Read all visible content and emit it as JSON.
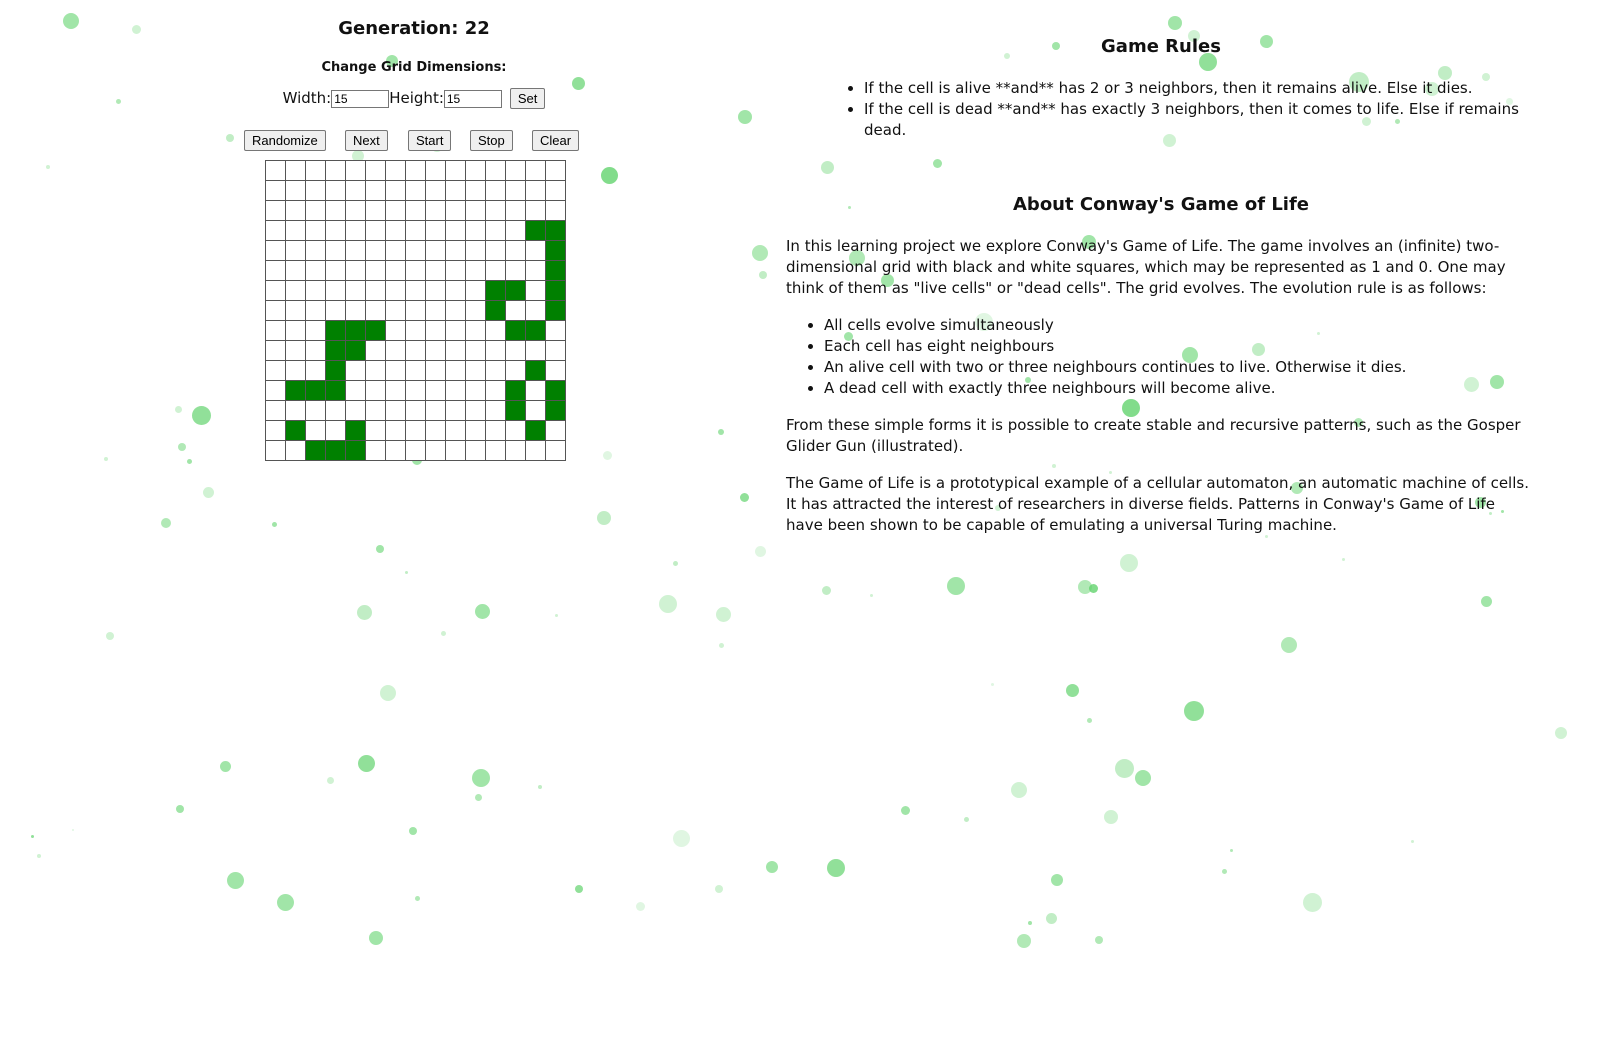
{
  "generation_text": "Generation: 22",
  "dimensions": {
    "title": "Change Grid Dimensions:",
    "width_label": "Width:",
    "width_value": "15",
    "height_label": "Height:",
    "height_value": "15",
    "set_label": "Set"
  },
  "controls": {
    "randomize": "Randomize",
    "next": "Next",
    "start": "Start",
    "stop": "Stop",
    "clear": "Clear"
  },
  "grid": {
    "rows": 15,
    "cols": 15,
    "alive_color": "#008000",
    "alive_cells": [
      [
        3,
        13
      ],
      [
        3,
        14
      ],
      [
        4,
        14
      ],
      [
        5,
        14
      ],
      [
        6,
        11
      ],
      [
        6,
        12
      ],
      [
        6,
        14
      ],
      [
        7,
        11
      ],
      [
        7,
        14
      ],
      [
        8,
        3
      ],
      [
        8,
        4
      ],
      [
        8,
        5
      ],
      [
        8,
        12
      ],
      [
        8,
        13
      ],
      [
        9,
        3
      ],
      [
        9,
        4
      ],
      [
        10,
        3
      ],
      [
        10,
        13
      ],
      [
        11,
        1
      ],
      [
        11,
        2
      ],
      [
        11,
        3
      ],
      [
        11,
        12
      ],
      [
        11,
        14
      ],
      [
        12,
        12
      ],
      [
        12,
        14
      ],
      [
        13,
        1
      ],
      [
        13,
        4
      ],
      [
        13,
        13
      ],
      [
        14,
        2
      ],
      [
        14,
        3
      ],
      [
        14,
        4
      ]
    ]
  },
  "rules": {
    "title": "Game Rules",
    "items": [
      "If the cell is alive **and** has 2 or 3 neighbors, then it remains alive. Else it dies.",
      "If the cell is dead **and** has exactly 3 neighbors, then it comes to life. Else if remains dead."
    ]
  },
  "about": {
    "title": "About Conway's Game of Life",
    "intro": "In this learning project we explore Conway's Game of Life. The game involves an (infinite) two-dimensional grid with black and white squares, which may be represented as 1 and 0. One may think of them as \"live cells\" or \"dead cells\". The grid evolves. The evolution rule is as follows:",
    "rule_items": [
      "All cells evolve simultaneously",
      "Each cell has eight neighbours",
      "An alive cell with two or three neighbours continues to live. Otherwise it dies.",
      "A dead cell with exactly three neighbours will become alive."
    ],
    "patterns": "From these simple forms it is possible to create stable and recursive patterns, such as the Gosper Glider Gun (illustrated).",
    "automaton": "The Game of Life is a prototypical example of a cellular automaton, an automatic machine of cells. It has attracted the interest of researchers in diverse fields. Patterns in Conway's Game of Life have been shown to be capable of emulating a universal Turing machine."
  },
  "background": {
    "bubble_color": "#63d36e"
  }
}
